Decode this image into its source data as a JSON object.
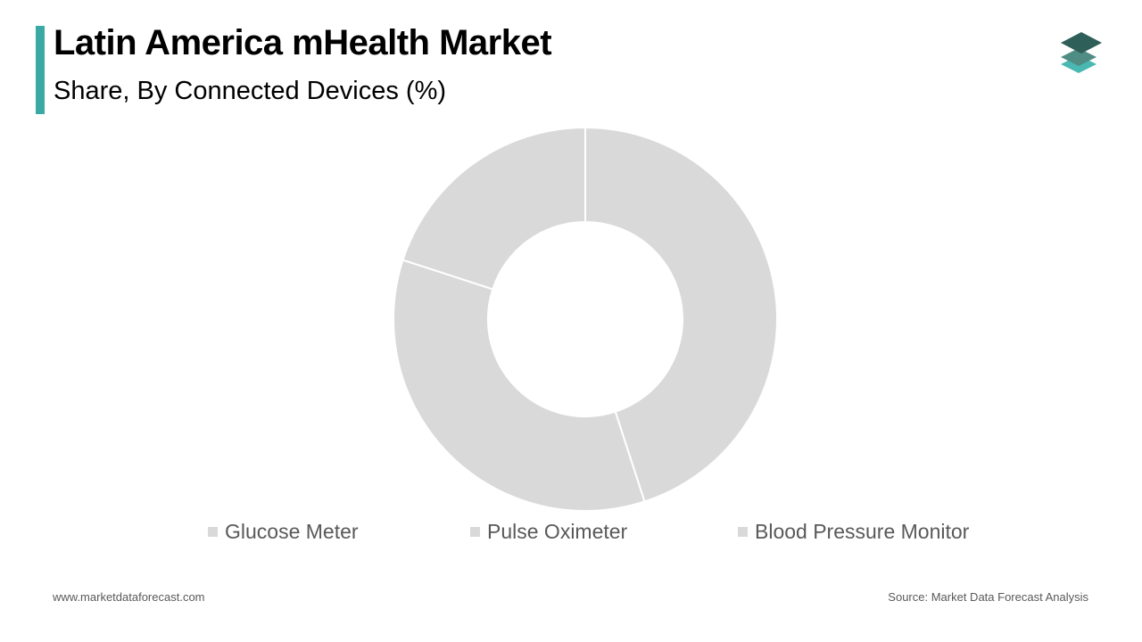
{
  "header": {
    "title": "Latin America mHealth Market",
    "subtitle": "Share, By Connected Devices (%)"
  },
  "colors": {
    "accent": "#3aa9a3",
    "slice": "#d9d9d9",
    "slice_border": "#ffffff",
    "legend_text": "#595959",
    "logo_dark": "#2e5f58",
    "logo_mid": "#4f8c84",
    "logo_light": "#49b8b1"
  },
  "logo": {
    "icon": "stacked-layers-icon"
  },
  "chart_data": {
    "type": "pie",
    "title": "Latin America mHealth Market",
    "subtitle": "Share, By Connected Devices (%)",
    "donut": true,
    "categories": [
      "Glucose Meter",
      "Pulse Oximeter",
      "Blood Pressure Monitor"
    ],
    "values": [
      45,
      35,
      20
    ],
    "unit": "%",
    "legend_position": "bottom"
  },
  "footer": {
    "website": "www.marketdataforecast.com",
    "source": "Source: Market Data Forecast Analysis"
  }
}
